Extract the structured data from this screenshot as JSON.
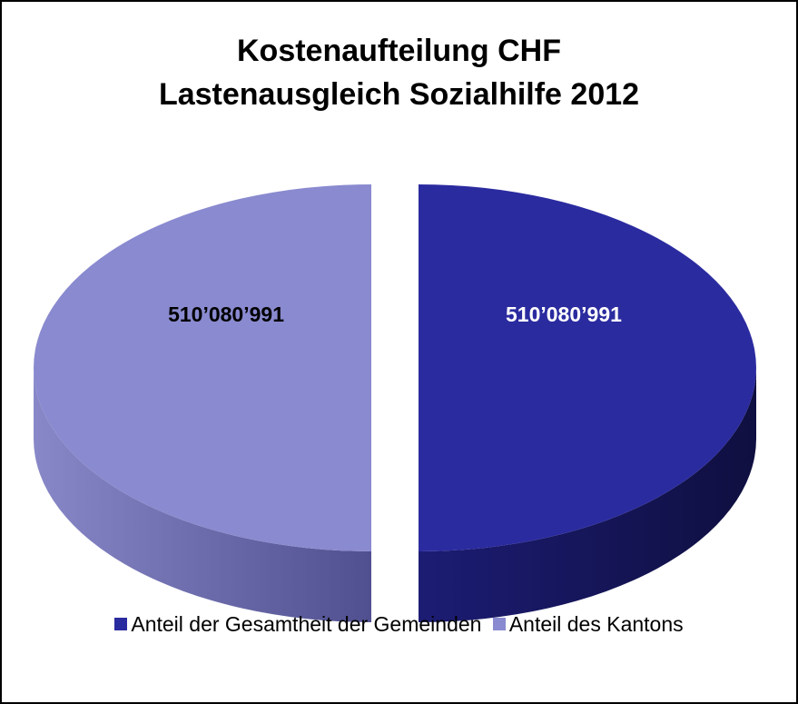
{
  "chart_data": {
    "type": "pie",
    "title_lines": [
      "Kostenaufteilung CHF",
      "Lastenausgleich Sozialhilfe 2012"
    ],
    "slices": [
      {
        "name": "Anteil der Gesamtheit der Gemeinden",
        "value": 510080991,
        "label": "510’080’991",
        "color": "#2b2ba0",
        "side_color": "#15155c",
        "label_color": "#ffffff"
      },
      {
        "name": "Anteil des Kantons",
        "value": 510080991,
        "label": "510’080’991",
        "color": "#8a8ad0",
        "side_color": "#5f5f9c",
        "label_color": "#000000"
      }
    ],
    "legend_position": "bottom",
    "style": "3d-exploded"
  }
}
